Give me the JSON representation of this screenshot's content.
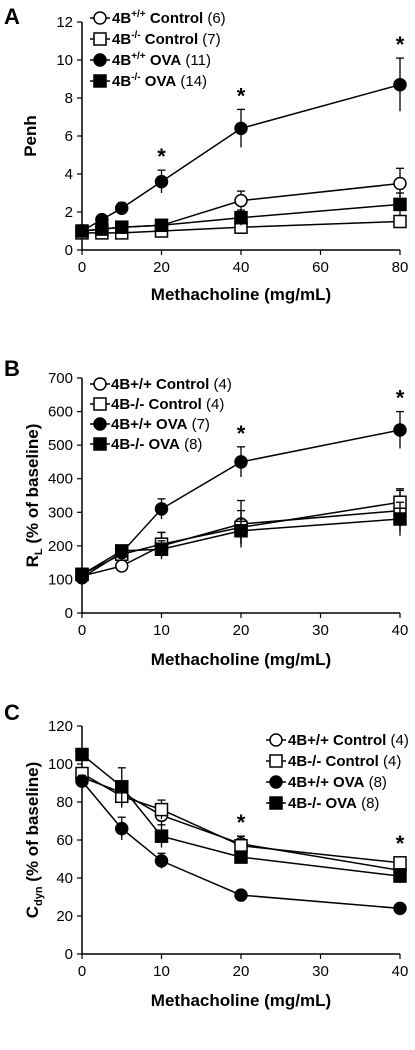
{
  "chart_data": [
    {
      "panel": "A",
      "type": "line",
      "xlabel": "Methacholine (mg/mL)",
      "ylabel": "Penh",
      "xlim": [
        0,
        80
      ],
      "ylim": [
        0,
        12
      ],
      "xticks": [
        0,
        20,
        40,
        60,
        80
      ],
      "yticks": [
        0,
        2,
        4,
        6,
        8,
        10,
        12
      ],
      "legend_placement": "top-left",
      "significance_marker": "*",
      "significance_x": [
        20,
        40,
        80
      ],
      "series": [
        {
          "legend_main": "4B",
          "legend_sup": "+/+",
          "legend_text": " Control",
          "legend_count": " (6)",
          "marker": "circle-open",
          "x": [
            0,
            5,
            10,
            20,
            40,
            80
          ],
          "y": [
            1.0,
            1.1,
            1.2,
            1.3,
            2.6,
            3.5
          ],
          "err": [
            0.1,
            0.1,
            0.1,
            0.2,
            0.5,
            0.8
          ]
        },
        {
          "legend_main": "4B",
          "legend_sup": "-/-",
          "legend_text": " Control",
          "legend_count": " (7)",
          "marker": "square-open",
          "x": [
            0,
            5,
            10,
            20,
            40,
            80
          ],
          "y": [
            0.9,
            0.9,
            0.9,
            1.0,
            1.2,
            1.5
          ],
          "err": [
            0.1,
            0.1,
            0.1,
            0.1,
            0.2,
            0.3
          ]
        },
        {
          "legend_main": "4B",
          "legend_sup": "+/+",
          "legend_text": " OVA",
          "legend_count": " (11)",
          "marker": "circle-filled",
          "x": [
            0,
            5,
            10,
            20,
            40,
            80
          ],
          "y": [
            1.0,
            1.6,
            2.2,
            3.6,
            6.4,
            8.7
          ],
          "err": [
            0.1,
            0.2,
            0.3,
            0.6,
            1.0,
            1.4
          ]
        },
        {
          "legend_main": "4B",
          "legend_sup": "-/-",
          "legend_text": " OVA",
          "legend_count": " (14)",
          "marker": "square-filled",
          "x": [
            0,
            5,
            10,
            20,
            40,
            80
          ],
          "y": [
            1.0,
            1.1,
            1.2,
            1.3,
            1.7,
            2.4
          ],
          "err": [
            0.1,
            0.1,
            0.1,
            0.2,
            0.4,
            0.6
          ]
        }
      ]
    },
    {
      "panel": "B",
      "type": "line",
      "xlabel": "Methacholine (mg/mL)",
      "ylabel_main": "R",
      "ylabel_sub": "L",
      "ylabel_rest": " (% of baseline)",
      "xlim": [
        0,
        40
      ],
      "ylim": [
        0,
        700
      ],
      "xticks": [
        0,
        10,
        20,
        30,
        40
      ],
      "yticks": [
        0,
        100,
        200,
        300,
        400,
        500,
        600,
        700
      ],
      "legend_placement": "top-left",
      "significance_marker": "*",
      "significance_x": [
        20,
        40
      ],
      "series": [
        {
          "legend_main": "4B+/+ Control",
          "legend_count": " (4)",
          "marker": "circle-open",
          "x": [
            0,
            5,
            10,
            20,
            40
          ],
          "y": [
            110,
            140,
            200,
            265,
            305
          ],
          "err": [
            10,
            15,
            40,
            70,
            60
          ]
        },
        {
          "legend_main": "4B-/- Control",
          "legend_count": " (4)",
          "marker": "square-open",
          "x": [
            0,
            5,
            10,
            20,
            40
          ],
          "y": [
            115,
            175,
            205,
            255,
            330
          ],
          "err": [
            10,
            20,
            35,
            50,
            40
          ]
        },
        {
          "legend_main": "4B+/+ OVA",
          "legend_count": " (7)",
          "marker": "circle-filled",
          "x": [
            0,
            5,
            10,
            20,
            40
          ],
          "y": [
            105,
            180,
            310,
            450,
            545
          ],
          "err": [
            10,
            20,
            30,
            45,
            55
          ]
        },
        {
          "legend_main": "4B-/- OVA",
          "legend_count": " (8)",
          "marker": "square-filled",
          "x": [
            0,
            5,
            10,
            20,
            40
          ],
          "y": [
            115,
            185,
            190,
            245,
            280
          ],
          "err": [
            10,
            15,
            25,
            35,
            50
          ]
        }
      ]
    },
    {
      "panel": "C",
      "type": "line",
      "xlabel": "Methacholine (mg/mL)",
      "ylabel_main": "C",
      "ylabel_sub": "dyn",
      "ylabel_rest": " (% of baseline)",
      "xlim": [
        0,
        40
      ],
      "ylim": [
        0,
        120
      ],
      "xticks": [
        0,
        10,
        20,
        30,
        40
      ],
      "yticks": [
        0,
        20,
        40,
        60,
        80,
        100,
        120
      ],
      "legend_placement": "top-right",
      "significance_marker": "*",
      "significance_x": [
        20,
        40
      ],
      "series": [
        {
          "legend_main": "4B+/+ Control",
          "legend_count": " (4)",
          "marker": "circle-open",
          "x": [
            0,
            5,
            10,
            20,
            40
          ],
          "y": [
            93,
            85,
            73,
            58,
            44
          ],
          "err": [
            3,
            5,
            5,
            4,
            3
          ]
        },
        {
          "legend_main": "4B-/- Control",
          "legend_count": " (4)",
          "marker": "square-open",
          "x": [
            0,
            5,
            10,
            20,
            40
          ],
          "y": [
            95,
            83,
            76,
            57,
            48
          ],
          "err": [
            3,
            6,
            5,
            5,
            3
          ]
        },
        {
          "legend_main": "4B+/+ OVA",
          "legend_count": " (8)",
          "marker": "circle-filled",
          "x": [
            0,
            5,
            10,
            20,
            40
          ],
          "y": [
            91,
            66,
            49,
            31,
            24
          ],
          "err": [
            3,
            6,
            4,
            2,
            2
          ]
        },
        {
          "legend_main": "4B-/- OVA",
          "legend_count": " (8)",
          "marker": "square-filled",
          "x": [
            0,
            5,
            10,
            20,
            40
          ],
          "y": [
            105,
            88,
            62,
            51,
            41
          ],
          "err": [
            3,
            10,
            6,
            3,
            2
          ]
        }
      ]
    }
  ]
}
